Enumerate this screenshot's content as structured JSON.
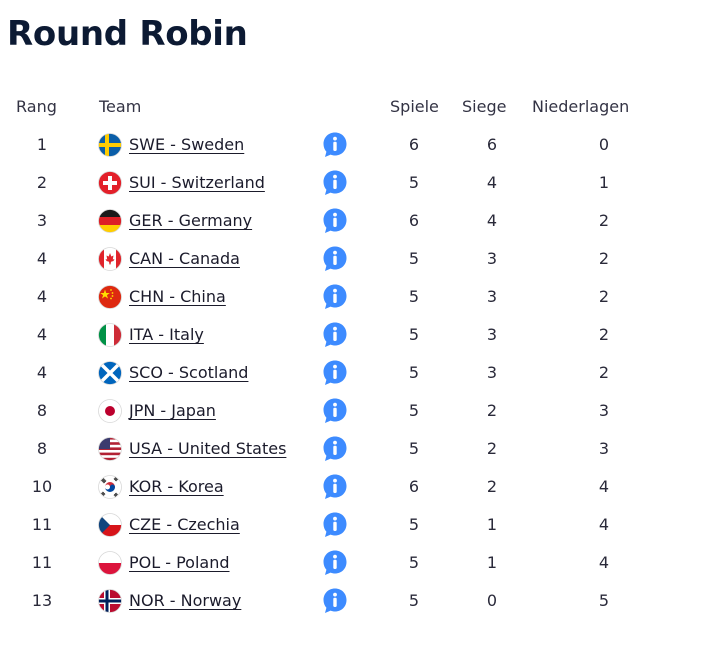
{
  "title": "Round Robin",
  "headers": {
    "rank": "Rang",
    "team": "Team",
    "played": "Spiele",
    "won": "Siege",
    "lost": "Niederlagen"
  },
  "colors": {
    "title": "#0c1a33",
    "info_icon": "#3d8bff"
  },
  "rows": [
    {
      "rank": "1",
      "team": "SWE - Sweden",
      "flag": "sweden-flag-icon",
      "played": "6",
      "won": "6",
      "lost": "0"
    },
    {
      "rank": "2",
      "team": "SUI - Switzerland",
      "flag": "switzerland-flag-icon",
      "played": "5",
      "won": "4",
      "lost": "1"
    },
    {
      "rank": "3",
      "team": "GER - Germany",
      "flag": "germany-flag-icon",
      "played": "6",
      "won": "4",
      "lost": "2"
    },
    {
      "rank": "4",
      "team": "CAN - Canada",
      "flag": "canada-flag-icon",
      "played": "5",
      "won": "3",
      "lost": "2"
    },
    {
      "rank": "4",
      "team": "CHN - China",
      "flag": "china-flag-icon",
      "played": "5",
      "won": "3",
      "lost": "2"
    },
    {
      "rank": "4",
      "team": "ITA - Italy",
      "flag": "italy-flag-icon",
      "played": "5",
      "won": "3",
      "lost": "2"
    },
    {
      "rank": "4",
      "team": "SCO - Scotland",
      "flag": "scotland-flag-icon",
      "played": "5",
      "won": "3",
      "lost": "2"
    },
    {
      "rank": "8",
      "team": "JPN - Japan",
      "flag": "japan-flag-icon",
      "played": "5",
      "won": "2",
      "lost": "3"
    },
    {
      "rank": "8",
      "team": "USA - United States",
      "flag": "usa-flag-icon",
      "played": "5",
      "won": "2",
      "lost": "3"
    },
    {
      "rank": "10",
      "team": "KOR - Korea",
      "flag": "korea-flag-icon",
      "played": "6",
      "won": "2",
      "lost": "4"
    },
    {
      "rank": "11",
      "team": "CZE - Czechia",
      "flag": "czechia-flag-icon",
      "played": "5",
      "won": "1",
      "lost": "4"
    },
    {
      "rank": "11",
      "team": "POL - Poland",
      "flag": "poland-flag-icon",
      "played": "5",
      "won": "1",
      "lost": "4"
    },
    {
      "rank": "13",
      "team": "NOR - Norway",
      "flag": "norway-flag-icon",
      "played": "5",
      "won": "0",
      "lost": "5"
    }
  ]
}
